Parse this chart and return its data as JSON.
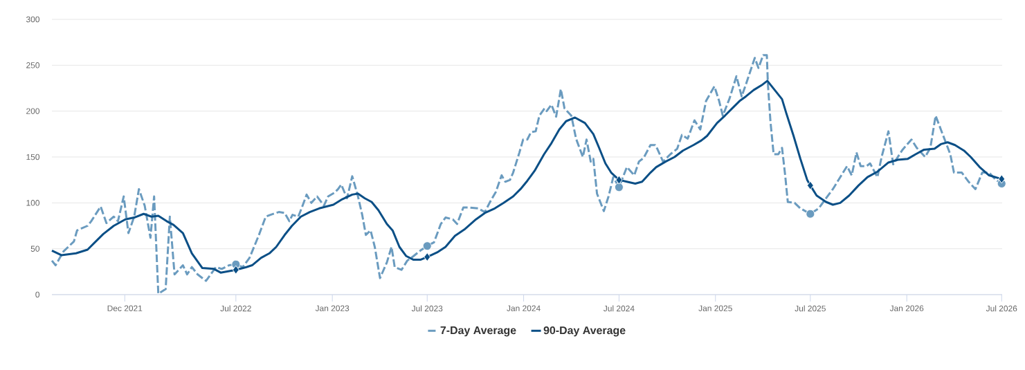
{
  "chart_data": {
    "type": "line",
    "xlim": [
      "2021-07-15",
      "2026-07-02"
    ],
    "ylim": [
      0,
      300
    ],
    "yticks": [
      0,
      50,
      100,
      150,
      200,
      250,
      300
    ],
    "xticks": [
      {
        "value": "2021-12-01",
        "label": "Dec 2021"
      },
      {
        "value": "2022-07-01",
        "label": "Jul 2022"
      },
      {
        "value": "2023-01-01",
        "label": "Jan 2023"
      },
      {
        "value": "2023-07-01",
        "label": "Jul 2023"
      },
      {
        "value": "2024-01-01",
        "label": "Jan 2024"
      },
      {
        "value": "2024-07-01",
        "label": "Jul 2024"
      },
      {
        "value": "2025-01-01",
        "label": "Jan 2025"
      },
      {
        "value": "2025-07-01",
        "label": "Jul 2025"
      },
      {
        "value": "2026-01-01",
        "label": "Jan 2026"
      },
      {
        "value": "2026-07-01",
        "label": "Jul 2026"
      }
    ],
    "grid": "y",
    "legend": "bottom",
    "series": [
      {
        "name": "7-Day Average",
        "line_style": "dashed",
        "color": "#6a9bbf",
        "x": [
          "2021-07-15",
          "2021-07-22",
          "2021-08-06",
          "2021-08-26",
          "2021-09-01",
          "2021-09-21",
          "2021-09-28",
          "2021-10-16",
          "2021-10-27",
          "2021-11-10",
          "2021-11-18",
          "2021-11-29",
          "2021-12-08",
          "2021-12-19",
          "2021-12-28",
          "2022-01-08",
          "2022-01-19",
          "2022-01-26",
          "2022-02-03",
          "2022-02-17",
          "2022-02-25",
          "2022-03-06",
          "2022-03-22",
          "2022-03-30",
          "2022-04-08",
          "2022-04-19",
          "2022-05-05",
          "2022-05-24",
          "2022-06-04",
          "2022-06-18",
          "2022-07-01",
          "2022-07-14",
          "2022-07-27",
          "2022-08-14",
          "2022-08-27",
          "2022-09-05",
          "2022-09-21",
          "2022-10-02",
          "2022-10-11",
          "2022-10-17",
          "2022-10-28",
          "2022-11-04",
          "2022-11-13",
          "2022-11-22",
          "2022-12-03",
          "2022-12-16",
          "2022-12-24",
          "2023-01-05",
          "2023-01-12",
          "2023-01-18",
          "2023-01-29",
          "2023-02-08",
          "2023-02-19",
          "2023-02-27",
          "2023-03-06",
          "2023-03-15",
          "2023-03-23",
          "2023-04-02",
          "2023-04-15",
          "2023-04-24",
          "2023-04-30",
          "2023-05-13",
          "2023-05-24",
          "2023-06-05",
          "2023-06-18",
          "2023-07-01",
          "2023-07-14",
          "2023-07-27",
          "2023-08-05",
          "2023-08-19",
          "2023-08-27",
          "2023-09-08",
          "2023-09-19",
          "2023-10-06",
          "2023-10-19",
          "2023-10-28",
          "2023-11-09",
          "2023-11-20",
          "2023-11-27",
          "2023-12-06",
          "2023-12-12",
          "2023-12-24",
          "2023-12-31",
          "2024-01-08",
          "2024-01-15",
          "2024-01-24",
          "2024-01-31",
          "2024-02-10",
          "2024-02-14",
          "2024-02-23",
          "2024-03-03",
          "2024-03-12",
          "2024-03-19",
          "2024-04-01",
          "2024-04-10",
          "2024-04-23",
          "2024-04-30",
          "2024-05-08",
          "2024-05-13",
          "2024-05-20",
          "2024-06-02",
          "2024-06-11",
          "2024-06-20",
          "2024-07-01",
          "2024-07-16",
          "2024-07-30",
          "2024-08-08",
          "2024-08-17",
          "2024-08-30",
          "2024-09-08",
          "2024-09-12",
          "2024-09-23",
          "2024-10-07",
          "2024-10-20",
          "2024-10-29",
          "2024-11-09",
          "2024-11-22",
          "2024-12-03",
          "2024-12-14",
          "2024-12-30",
          "2025-01-08",
          "2025-01-15",
          "2025-01-28",
          "2025-02-10",
          "2025-02-20",
          "2025-02-28",
          "2025-03-17",
          "2025-03-24",
          "2025-04-02",
          "2025-04-09",
          "2025-04-11",
          "2025-04-16",
          "2025-04-22",
          "2025-05-01",
          "2025-05-08",
          "2025-05-14",
          "2025-05-19",
          "2025-06-01",
          "2025-06-12",
          "2025-07-01",
          "2025-07-17",
          "2025-07-31",
          "2025-08-13",
          "2025-08-27",
          "2025-09-09",
          "2025-09-18",
          "2025-09-27",
          "2025-10-05",
          "2025-10-16",
          "2025-10-23",
          "2025-11-06",
          "2025-11-14",
          "2025-11-27",
          "2025-12-06",
          "2025-12-24",
          "2026-01-10",
          "2026-01-20",
          "2026-02-05",
          "2026-02-15",
          "2026-02-25",
          "2026-03-07",
          "2026-03-25",
          "2026-04-01",
          "2026-04-16",
          "2026-04-29",
          "2026-05-12",
          "2026-05-25",
          "2026-06-07",
          "2026-06-20",
          "2026-07-01"
        ],
        "values": [
          37,
          32,
          47,
          58,
          70,
          75,
          80,
          96,
          78,
          85,
          80,
          107,
          67,
          85,
          115,
          97,
          62,
          107,
          1,
          6,
          85,
          22,
          32,
          22,
          30,
          22,
          15,
          30,
          28,
          32,
          33,
          30,
          40,
          65,
          85,
          87,
          90,
          89,
          80,
          87,
          85,
          95,
          109,
          100,
          107,
          97,
          107,
          111,
          115,
          120,
          105,
          129,
          107,
          87,
          65,
          70,
          52,
          18,
          35,
          52,
          30,
          27,
          37,
          42,
          48,
          53,
          57,
          77,
          84,
          82,
          77,
          95,
          95,
          94,
          90,
          100,
          112,
          130,
          123,
          125,
          133,
          155,
          169,
          169,
          177,
          178,
          195,
          203,
          200,
          207,
          194,
          224,
          203,
          195,
          170,
          150,
          169,
          145,
          148,
          110,
          91,
          107,
          128,
          117,
          139,
          130,
          145,
          149,
          163,
          163,
          159,
          145,
          153,
          159,
          174,
          170,
          190,
          180,
          211,
          227,
          211,
          195,
          214,
          238,
          216,
          229,
          258,
          247,
          261,
          261,
          230,
          188,
          153,
          153,
          160,
          130,
          101,
          100,
          94,
          88,
          94,
          105,
          115,
          128,
          140,
          130,
          155,
          140,
          140,
          143,
          128,
          150,
          178,
          142,
          158,
          169,
          160,
          150,
          160,
          195,
          180,
          153,
          133,
          133,
          123,
          115,
          133,
          133,
          125,
          121
        ]
      },
      {
        "name": "90-Day Average",
        "line_style": "solid",
        "color": "#0b4f86",
        "x": [
          "2021-07-15",
          "2021-08-02",
          "2021-08-30",
          "2021-09-21",
          "2021-10-05",
          "2021-10-21",
          "2021-11-10",
          "2021-12-02",
          "2021-12-19",
          "2022-01-06",
          "2022-01-21",
          "2022-02-03",
          "2022-02-19",
          "2022-03-04",
          "2022-03-22",
          "2022-04-08",
          "2022-04-28",
          "2022-05-20",
          "2022-06-02",
          "2022-07-01",
          "2022-07-21",
          "2022-08-01",
          "2022-08-18",
          "2022-09-03",
          "2022-09-16",
          "2022-10-02",
          "2022-10-16",
          "2022-11-02",
          "2022-11-19",
          "2022-12-07",
          "2023-01-03",
          "2023-01-20",
          "2023-02-08",
          "2023-02-19",
          "2023-03-04",
          "2023-03-17",
          "2023-03-30",
          "2023-04-15",
          "2023-04-26",
          "2023-05-09",
          "2023-05-22",
          "2023-06-05",
          "2023-06-18",
          "2023-07-01",
          "2023-07-20",
          "2023-08-05",
          "2023-08-23",
          "2023-09-10",
          "2023-10-02",
          "2023-10-19",
          "2023-11-07",
          "2023-11-24",
          "2023-12-12",
          "2023-12-26",
          "2024-01-08",
          "2024-01-22",
          "2024-02-09",
          "2024-02-23",
          "2024-03-09",
          "2024-03-22",
          "2024-04-08",
          "2024-04-27",
          "2024-05-13",
          "2024-05-24",
          "2024-06-05",
          "2024-06-16",
          "2024-07-01",
          "2024-07-16",
          "2024-08-01",
          "2024-08-14",
          "2024-08-30",
          "2024-09-10",
          "2024-09-28",
          "2024-10-15",
          "2024-10-31",
          "2024-11-20",
          "2024-12-05",
          "2024-12-16",
          "2025-01-04",
          "2025-01-19",
          "2025-02-02",
          "2025-02-16",
          "2025-02-28",
          "2025-03-15",
          "2025-04-01",
          "2025-04-10",
          "2025-04-24",
          "2025-05-08",
          "2025-05-16",
          "2025-05-30",
          "2025-06-12",
          "2025-06-25",
          "2025-07-01",
          "2025-07-13",
          "2025-07-31",
          "2025-08-13",
          "2025-08-27",
          "2025-09-13",
          "2025-10-01",
          "2025-10-18",
          "2025-11-06",
          "2025-11-27",
          "2025-12-15",
          "2026-01-03",
          "2026-01-18",
          "2026-02-03",
          "2026-02-23",
          "2026-03-07",
          "2026-03-20",
          "2026-04-03",
          "2026-04-20",
          "2026-05-03",
          "2026-05-20",
          "2026-06-07",
          "2026-07-01"
        ],
        "values": [
          48,
          43,
          45,
          49,
          57,
          66,
          75,
          82,
          84,
          88,
          85,
          86,
          80,
          76,
          67,
          45,
          29,
          28,
          24,
          27,
          30,
          32,
          40,
          45,
          52,
          65,
          75,
          85,
          90,
          94,
          98,
          104,
          109,
          110,
          105,
          101,
          92,
          77,
          70,
          52,
          42,
          38,
          38,
          41,
          46,
          52,
          64,
          71,
          82,
          89,
          94,
          100,
          107,
          115,
          124,
          135,
          153,
          165,
          180,
          189,
          193,
          187,
          175,
          160,
          143,
          133,
          125,
          123,
          121,
          123,
          133,
          139,
          145,
          150,
          157,
          163,
          168,
          173,
          187,
          195,
          203,
          211,
          216,
          223,
          229,
          233,
          223,
          213,
          198,
          173,
          148,
          125,
          119,
          108,
          101,
          98,
          100,
          108,
          119,
          128,
          134,
          144,
          147,
          148,
          153,
          158,
          159,
          164,
          166,
          163,
          157,
          150,
          139,
          130,
          126
        ]
      },
      {
        "type": "scatter",
        "marker": "circle",
        "color": "#6a9bbf",
        "x": [
          "2022-07-01",
          "2023-07-01",
          "2024-07-01",
          "2025-07-01",
          "2026-07-01"
        ],
        "values": [
          33,
          53,
          117,
          88,
          121
        ]
      },
      {
        "type": "scatter",
        "marker": "diamond",
        "color": "#0b4f86",
        "x": [
          "2022-07-01",
          "2023-07-01",
          "2024-07-01",
          "2025-07-01",
          "2026-07-01"
        ],
        "values": [
          27,
          41,
          125,
          119,
          126
        ]
      }
    ]
  }
}
